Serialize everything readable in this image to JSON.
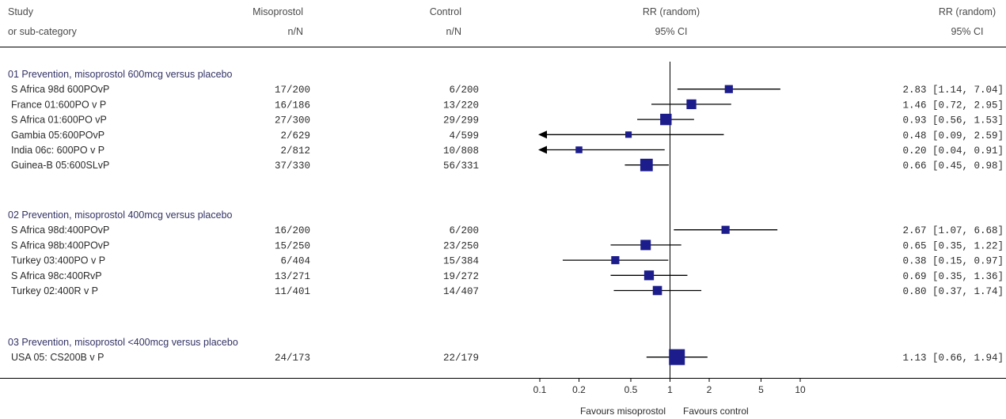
{
  "header": {
    "study_line1": "Study",
    "study_line2": "or sub-category",
    "miso_line1": "Misoprostol",
    "miso_line2": "n/N",
    "ctrl_line1": "Control",
    "ctrl_line2": "n/N",
    "plot_line1": "RR (random)",
    "plot_line2": "95% CI",
    "ci_line1": "RR (random)",
    "ci_line2": "95% CI"
  },
  "footer": {
    "favours_left": "Favours misoprostol",
    "favours_right": "Favours control"
  },
  "colors": {
    "marker": "#1c1c8c",
    "line": "#000000",
    "group_text": "#333366"
  },
  "chart_data": {
    "type": "forest",
    "x_scale": "log",
    "xlim": [
      0.1,
      10
    ],
    "reference_line": 1,
    "x_ticks": [
      {
        "value": 0.1,
        "label": "0.1"
      },
      {
        "value": 0.2,
        "label": "0.2"
      },
      {
        "value": 0.5,
        "label": "0.5"
      },
      {
        "value": 1,
        "label": "1"
      },
      {
        "value": 2,
        "label": "2"
      },
      {
        "value": 5,
        "label": "5"
      },
      {
        "value": 10,
        "label": "10"
      }
    ],
    "groups": [
      {
        "title": "01 Prevention, misoprostol 600mcg versus placebo",
        "studies": [
          {
            "name": "S Africa 98d 600POvP",
            "miso": "17/200",
            "control": "6/200",
            "rr": 2.83,
            "lo": 1.14,
            "hi": 7.04,
            "ci_text": "2.83 [1.14, 7.04]",
            "weight": 0.3
          },
          {
            "name": "France 01:600PO v P",
            "miso": "16/186",
            "control": "13/220",
            "rr": 1.46,
            "lo": 0.72,
            "hi": 2.95,
            "ci_text": "1.46 [0.72, 2.95]",
            "weight": 0.45
          },
          {
            "name": "S Africa 01:600PO vP",
            "miso": "27/300",
            "control": "29/299",
            "rr": 0.93,
            "lo": 0.56,
            "hi": 1.53,
            "ci_text": "0.93 [0.56, 1.53]",
            "weight": 0.6
          },
          {
            "name": "Gambia 05:600POvP",
            "miso": "2/629",
            "control": "4/599",
            "rr": 0.48,
            "lo": 0.09,
            "hi": 2.59,
            "ci_text": "0.48 [0.09, 2.59]",
            "weight": 0.15
          },
          {
            "name": "India 06c: 600PO v P",
            "miso": "2/812",
            "control": "10/808",
            "rr": 0.2,
            "lo": 0.04,
            "hi": 0.91,
            "ci_text": "0.20 [0.04, 0.91]",
            "weight": 0.18
          },
          {
            "name": "Guinea-B 05:600SLvP",
            "miso": "37/330",
            "control": "56/331",
            "rr": 0.66,
            "lo": 0.45,
            "hi": 0.98,
            "ci_text": "0.66 [0.45, 0.98]",
            "weight": 0.7
          }
        ]
      },
      {
        "title": "02 Prevention, misoprostol 400mcg versus placebo",
        "studies": [
          {
            "name": "S Africa 98d:400POvP",
            "miso": "16/200",
            "control": "6/200",
            "rr": 2.67,
            "lo": 1.07,
            "hi": 6.68,
            "ci_text": "2.67 [1.07, 6.68]",
            "weight": 0.3
          },
          {
            "name": "S Africa 98b:400POvP",
            "miso": "15/250",
            "control": "23/250",
            "rr": 0.65,
            "lo": 0.35,
            "hi": 1.22,
            "ci_text": "0.65 [0.35, 1.22]",
            "weight": 0.5
          },
          {
            "name": "Turkey 03:400PO v P",
            "miso": "6/404",
            "control": "15/384",
            "rr": 0.38,
            "lo": 0.15,
            "hi": 0.97,
            "ci_text": "0.38 [0.15, 0.97]",
            "weight": 0.3
          },
          {
            "name": "S Africa 98c:400RvP",
            "miso": "13/271",
            "control": "19/272",
            "rr": 0.69,
            "lo": 0.35,
            "hi": 1.36,
            "ci_text": "0.69 [0.35, 1.36]",
            "weight": 0.45
          },
          {
            "name": "Turkey 02:400R v P",
            "miso": "11/401",
            "control": "14/407",
            "rr": 0.8,
            "lo": 0.37,
            "hi": 1.74,
            "ci_text": "0.80 [0.37, 1.74]",
            "weight": 0.4
          }
        ]
      },
      {
        "title": "03 Prevention, misoprostol <400mcg versus placebo",
        "studies": [
          {
            "name": "USA 05: CS200B v P",
            "miso": "24/173",
            "control": "22/179",
            "rr": 1.13,
            "lo": 0.66,
            "hi": 1.94,
            "ci_text": "1.13 [0.66, 1.94]",
            "weight": 1.0
          }
        ]
      }
    ]
  }
}
